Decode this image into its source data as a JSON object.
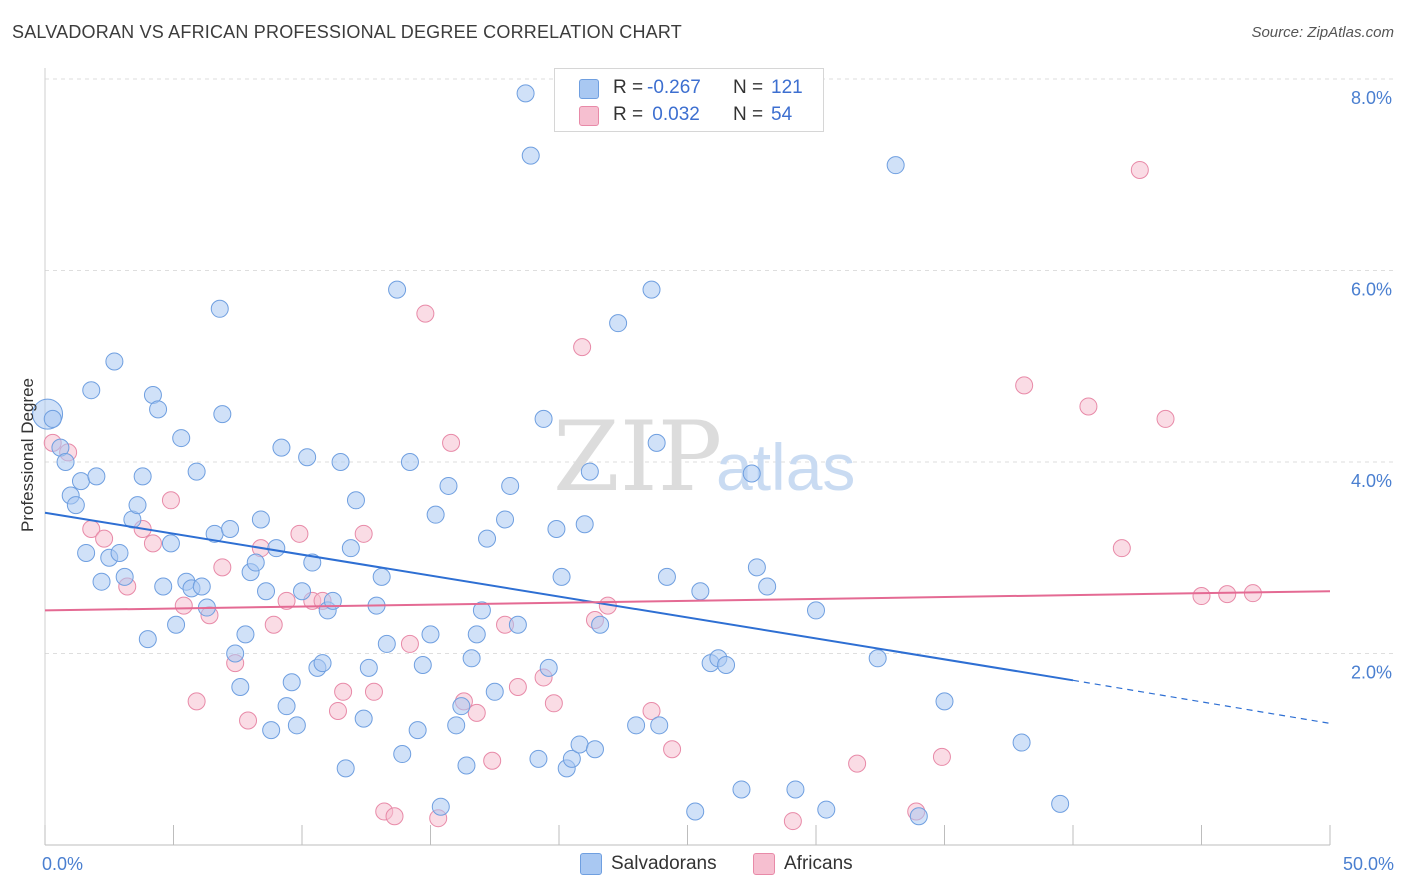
{
  "title": "SALVADORAN VS AFRICAN PROFESSIONAL DEGREE CORRELATION CHART",
  "source": "Source: ZipAtlas.com",
  "watermark": {
    "zip": "ZIP",
    "atlas": "atlas"
  },
  "colors": {
    "blue_fill": "#a9c8f2",
    "blue_stroke": "#6f9fe0",
    "blue_line": "#2e6fd3",
    "pink_fill": "#f6bfd0",
    "pink_stroke": "#e88aa8",
    "pink_line": "#e46a93",
    "axis_text": "#4a7fd0"
  },
  "legend": {
    "rows": [
      {
        "r_label": "R =",
        "r_value": "-0.267",
        "n_label": "N =",
        "n_value": "121"
      },
      {
        "r_label": "R =",
        "r_value": " 0.032",
        "n_label": "N =",
        "n_value": "54"
      }
    ]
  },
  "bottom_legend": {
    "salvadorans": "Salvadorans",
    "africans": "Africans"
  },
  "chart_data": {
    "type": "scatter",
    "title": "SALVADORAN VS AFRICAN PROFESSIONAL DEGREE CORRELATION CHART",
    "xlabel": "",
    "ylabel": "Professional Degree",
    "xlim": [
      0,
      50
    ],
    "ylim": [
      0,
      8.2
    ],
    "x_tick_labels": [
      "0.0%",
      "50.0%"
    ],
    "y_ticks": [
      2,
      4,
      6,
      8
    ],
    "y_tick_labels": [
      "2.0%",
      "4.0%",
      "6.0%",
      "8.0%"
    ],
    "series": [
      {
        "name": "Salvadorans",
        "r": -0.267,
        "n": 121,
        "trend": {
          "x0": 0,
          "y0": 3.47,
          "x1": 40,
          "y1": 1.72,
          "dash_to_x": 50,
          "dash_to_y": 1.27
        },
        "points": [
          [
            0.1,
            4.5
          ],
          [
            0.3,
            4.45
          ],
          [
            0.6,
            4.15
          ],
          [
            0.8,
            4.0
          ],
          [
            1.0,
            3.65
          ],
          [
            1.2,
            3.55
          ],
          [
            1.4,
            3.8
          ],
          [
            1.6,
            3.05
          ],
          [
            1.8,
            4.75
          ],
          [
            2.0,
            3.85
          ],
          [
            2.2,
            2.75
          ],
          [
            2.5,
            3.0
          ],
          [
            2.7,
            5.05
          ],
          [
            2.9,
            3.05
          ],
          [
            3.1,
            2.8
          ],
          [
            3.4,
            3.4
          ],
          [
            3.6,
            3.55
          ],
          [
            3.8,
            3.85
          ],
          [
            4.0,
            2.15
          ],
          [
            4.2,
            4.7
          ],
          [
            4.4,
            4.55
          ],
          [
            4.6,
            2.7
          ],
          [
            4.9,
            3.15
          ],
          [
            5.1,
            2.3
          ],
          [
            5.3,
            4.25
          ],
          [
            5.5,
            2.75
          ],
          [
            5.7,
            2.68
          ],
          [
            5.9,
            3.9
          ],
          [
            6.1,
            2.7
          ],
          [
            6.3,
            2.48
          ],
          [
            6.6,
            3.25
          ],
          [
            6.8,
            5.6
          ],
          [
            6.9,
            4.5
          ],
          [
            7.2,
            3.3
          ],
          [
            7.4,
            2.0
          ],
          [
            7.6,
            1.65
          ],
          [
            7.8,
            2.2
          ],
          [
            8.0,
            2.85
          ],
          [
            8.2,
            2.95
          ],
          [
            8.4,
            3.4
          ],
          [
            8.6,
            2.65
          ],
          [
            8.8,
            1.2
          ],
          [
            9.0,
            3.1
          ],
          [
            9.2,
            4.15
          ],
          [
            9.4,
            1.45
          ],
          [
            9.6,
            1.7
          ],
          [
            9.8,
            1.25
          ],
          [
            10.0,
            2.65
          ],
          [
            10.2,
            4.05
          ],
          [
            10.4,
            2.95
          ],
          [
            10.6,
            1.85
          ],
          [
            10.8,
            1.9
          ],
          [
            11.0,
            2.45
          ],
          [
            11.2,
            2.55
          ],
          [
            11.5,
            4.0
          ],
          [
            11.7,
            0.8
          ],
          [
            11.9,
            3.1
          ],
          [
            12.1,
            3.6
          ],
          [
            12.4,
            1.32
          ],
          [
            12.6,
            1.85
          ],
          [
            12.9,
            2.5
          ],
          [
            13.1,
            2.8
          ],
          [
            13.3,
            2.1
          ],
          [
            13.7,
            5.8
          ],
          [
            13.9,
            0.95
          ],
          [
            14.2,
            4.0
          ],
          [
            14.5,
            1.2
          ],
          [
            14.7,
            1.88
          ],
          [
            15.0,
            2.2
          ],
          [
            15.2,
            3.45
          ],
          [
            15.4,
            0.4
          ],
          [
            15.7,
            3.75
          ],
          [
            16.0,
            1.25
          ],
          [
            16.2,
            1.45
          ],
          [
            16.4,
            0.83
          ],
          [
            16.6,
            1.95
          ],
          [
            16.8,
            2.2
          ],
          [
            17.0,
            2.45
          ],
          [
            17.2,
            3.2
          ],
          [
            17.5,
            1.6
          ],
          [
            17.9,
            3.4
          ],
          [
            18.1,
            3.75
          ],
          [
            18.4,
            2.3
          ],
          [
            18.7,
            7.85
          ],
          [
            18.9,
            7.2
          ],
          [
            19.2,
            0.9
          ],
          [
            19.4,
            4.45
          ],
          [
            19.6,
            1.85
          ],
          [
            19.9,
            3.3
          ],
          [
            20.1,
            2.8
          ],
          [
            20.3,
            0.8
          ],
          [
            20.5,
            0.9
          ],
          [
            20.8,
            1.05
          ],
          [
            21.0,
            3.35
          ],
          [
            21.2,
            3.9
          ],
          [
            21.4,
            1.0
          ],
          [
            21.6,
            2.3
          ],
          [
            22.3,
            5.45
          ],
          [
            23.0,
            1.25
          ],
          [
            23.6,
            5.8
          ],
          [
            23.8,
            4.2
          ],
          [
            23.9,
            1.25
          ],
          [
            24.2,
            2.8
          ],
          [
            25.3,
            0.35
          ],
          [
            25.5,
            2.65
          ],
          [
            25.9,
            1.9
          ],
          [
            26.2,
            1.95
          ],
          [
            26.5,
            1.88
          ],
          [
            27.1,
            0.58
          ],
          [
            27.5,
            3.88
          ],
          [
            27.7,
            2.9
          ],
          [
            28.1,
            2.7
          ],
          [
            29.2,
            0.58
          ],
          [
            30.0,
            2.45
          ],
          [
            30.4,
            0.37
          ],
          [
            32.4,
            1.95
          ],
          [
            33.1,
            7.1
          ],
          [
            34.0,
            0.3
          ],
          [
            35.0,
            1.5
          ],
          [
            38.0,
            1.07
          ],
          [
            39.5,
            0.43
          ]
        ]
      },
      {
        "name": "Africans",
        "r": 0.032,
        "n": 54,
        "trend": {
          "x0": 0,
          "y0": 2.45,
          "x1": 50,
          "y1": 2.65
        },
        "points": [
          [
            0.3,
            4.2
          ],
          [
            0.9,
            4.1
          ],
          [
            1.8,
            3.3
          ],
          [
            2.3,
            3.2
          ],
          [
            3.2,
            2.7
          ],
          [
            3.8,
            3.3
          ],
          [
            4.2,
            3.15
          ],
          [
            4.9,
            3.6
          ],
          [
            5.4,
            2.5
          ],
          [
            5.9,
            1.5
          ],
          [
            6.4,
            2.4
          ],
          [
            6.9,
            2.9
          ],
          [
            7.4,
            1.9
          ],
          [
            7.9,
            1.3
          ],
          [
            8.4,
            3.1
          ],
          [
            8.9,
            2.3
          ],
          [
            9.4,
            2.55
          ],
          [
            9.9,
            3.25
          ],
          [
            10.4,
            2.55
          ],
          [
            10.8,
            2.55
          ],
          [
            11.4,
            1.4
          ],
          [
            11.6,
            1.6
          ],
          [
            12.4,
            3.25
          ],
          [
            12.8,
            1.6
          ],
          [
            13.2,
            0.35
          ],
          [
            13.6,
            0.3
          ],
          [
            14.2,
            2.1
          ],
          [
            14.8,
            5.55
          ],
          [
            15.3,
            0.28
          ],
          [
            15.8,
            4.2
          ],
          [
            16.3,
            1.5
          ],
          [
            16.8,
            1.38
          ],
          [
            17.4,
            0.88
          ],
          [
            17.9,
            2.3
          ],
          [
            18.4,
            1.65
          ],
          [
            19.4,
            1.75
          ],
          [
            19.8,
            1.48
          ],
          [
            20.9,
            5.2
          ],
          [
            21.4,
            2.35
          ],
          [
            21.9,
            2.5
          ],
          [
            23.6,
            1.4
          ],
          [
            24.4,
            1.0
          ],
          [
            29.1,
            0.25
          ],
          [
            31.6,
            0.85
          ],
          [
            33.9,
            0.35
          ],
          [
            34.9,
            0.92
          ],
          [
            38.1,
            4.8
          ],
          [
            40.6,
            4.58
          ],
          [
            41.9,
            3.1
          ],
          [
            42.6,
            7.05
          ],
          [
            43.6,
            4.45
          ],
          [
            45.0,
            2.6
          ],
          [
            46.0,
            2.62
          ],
          [
            47.0,
            2.63
          ]
        ]
      }
    ]
  }
}
